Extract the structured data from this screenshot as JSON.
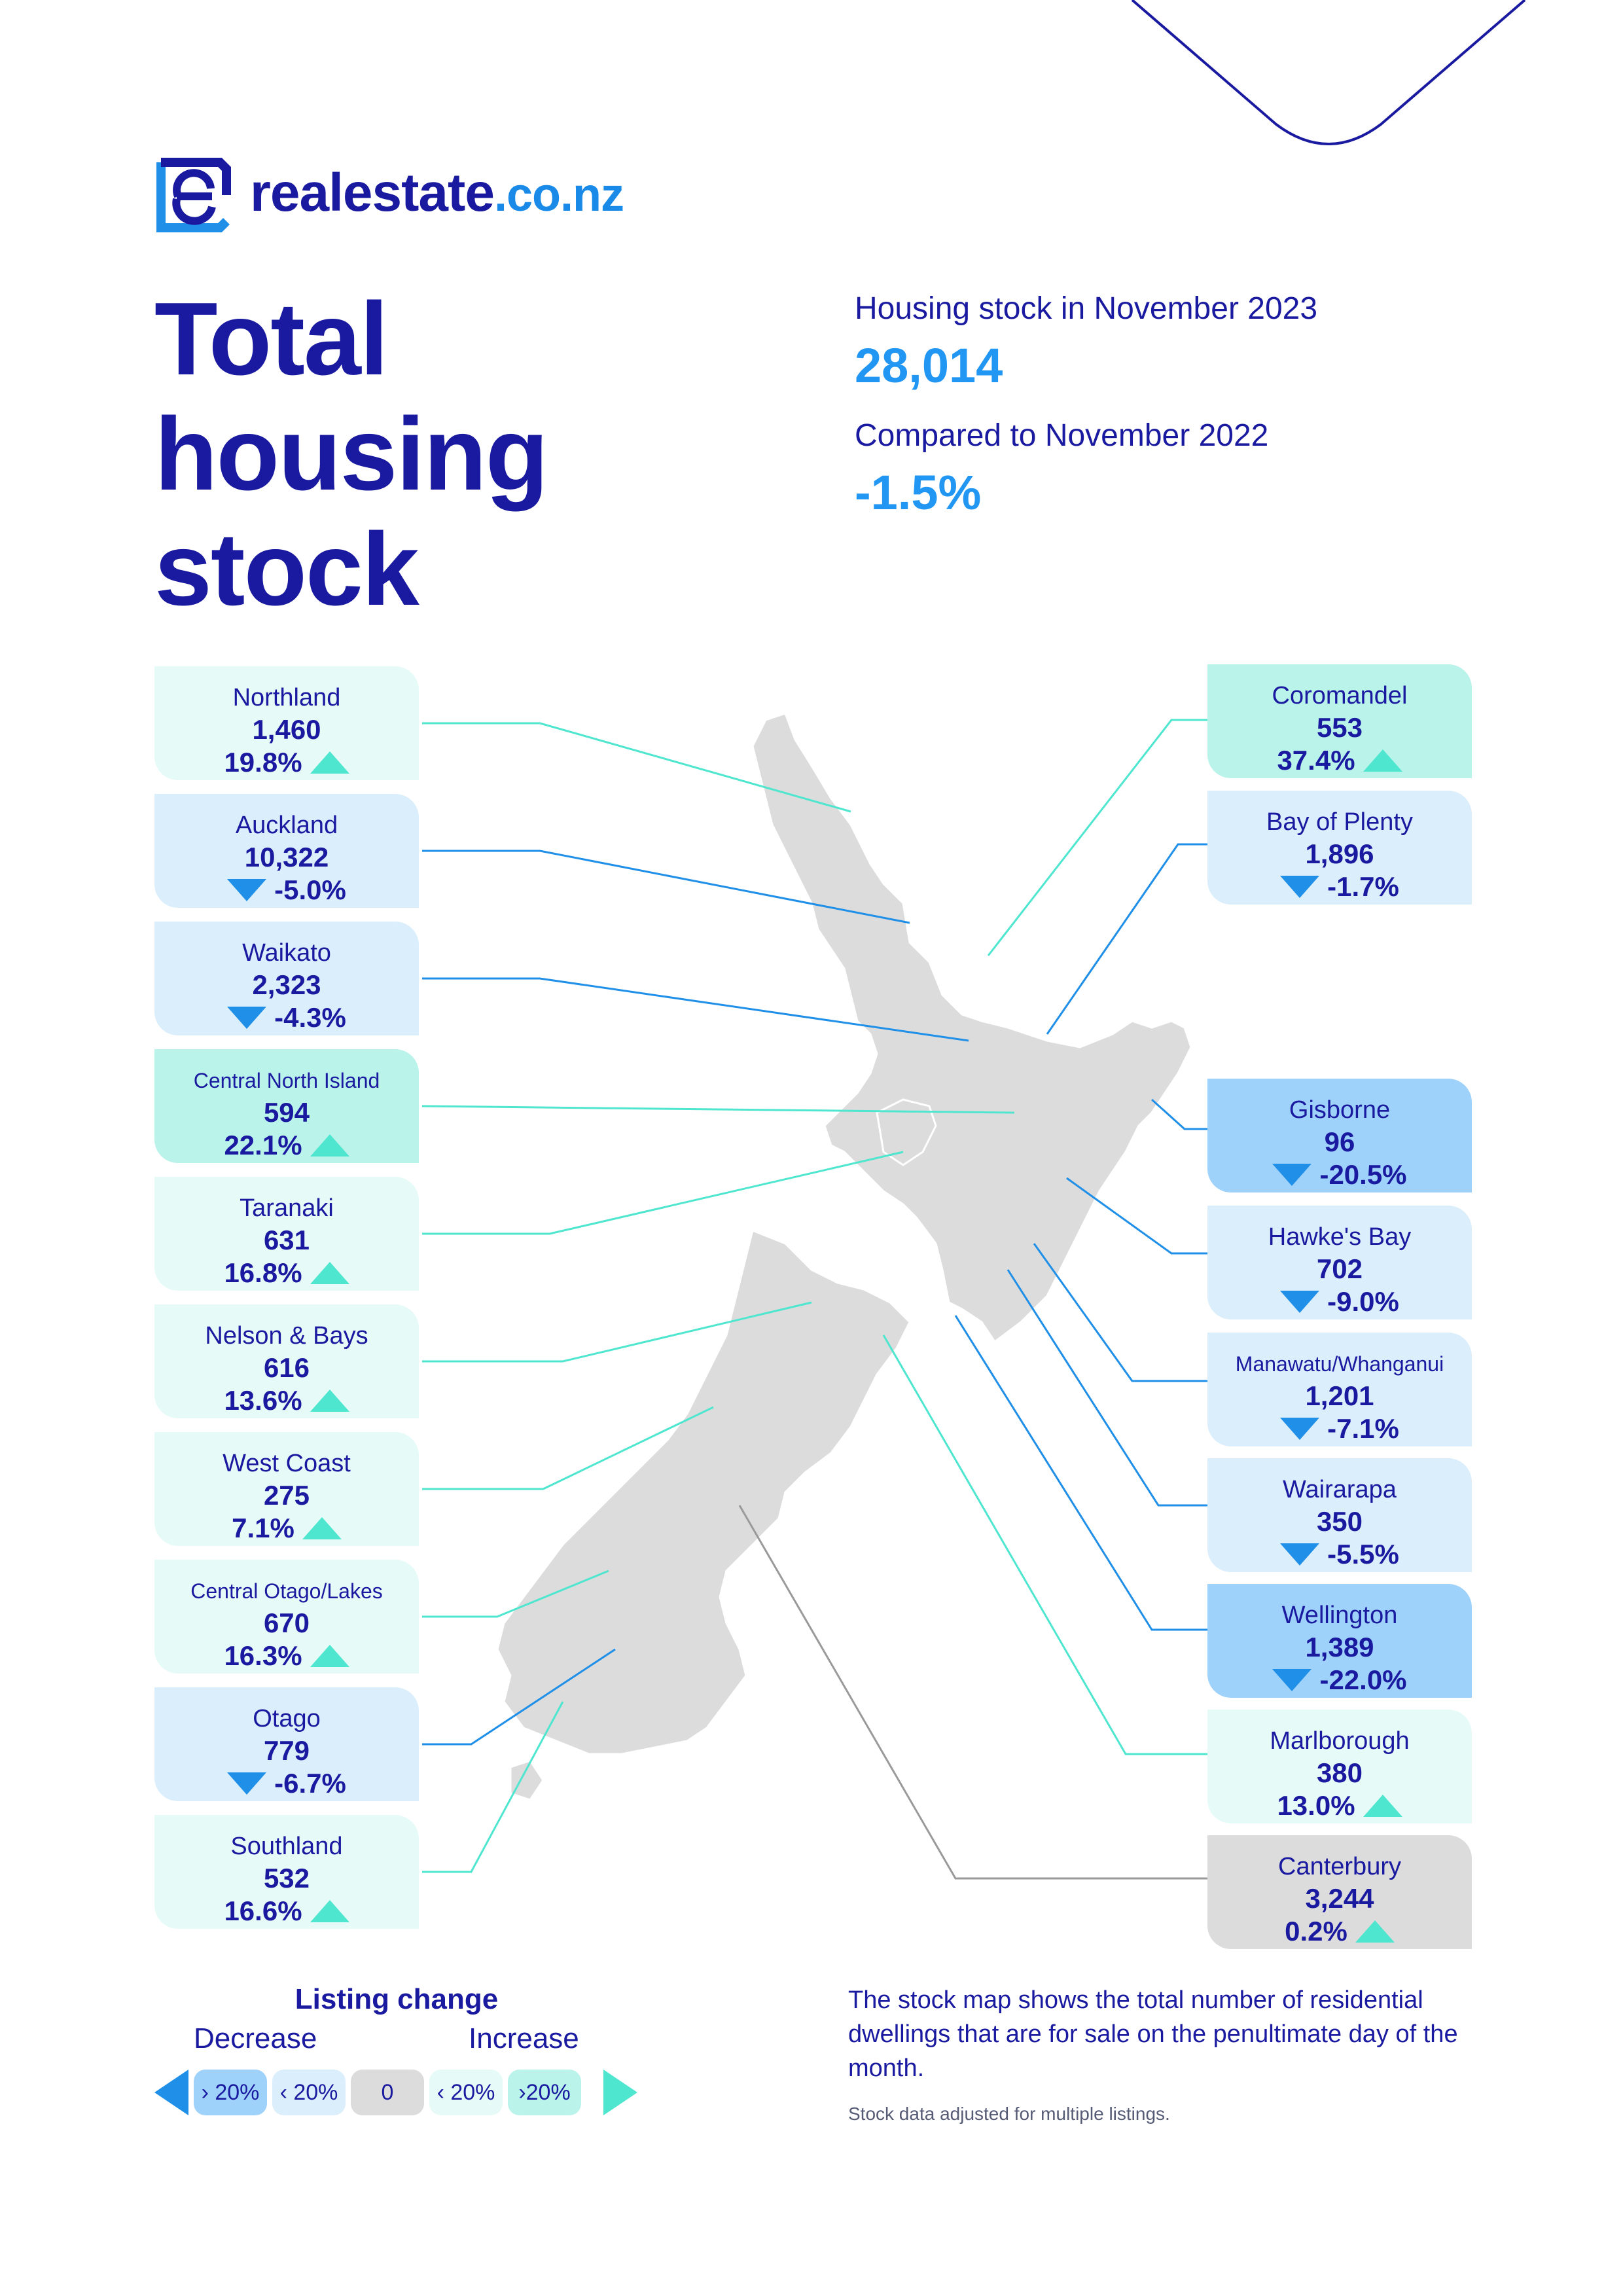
{
  "brand": {
    "name": "realestate",
    "tld": ".co.nz",
    "primary_color": "#1a1aa0",
    "accent_color": "#2196f3"
  },
  "title": {
    "line1": "Total",
    "line2": "housing",
    "line3": "stock"
  },
  "summary": {
    "stock_label": "Housing stock in November 2023",
    "stock_value": "28,014",
    "compare_label": "Compared to November 2022",
    "compare_value": "-1.5%"
  },
  "regions": [
    {
      "name": "Northland",
      "count": "1,460",
      "change": "19.8%",
      "direction": "up",
      "band": "increase"
    },
    {
      "name": "Auckland",
      "count": "10,322",
      "change": "-5.0%",
      "direction": "down",
      "band": "decrease"
    },
    {
      "name": "Waikato",
      "count": "2,323",
      "change": "-4.3%",
      "direction": "down",
      "band": "decrease"
    },
    {
      "name": "Central North Island",
      "count": "594",
      "change": "22.1%",
      "direction": "up",
      "band": "increase-over-20"
    },
    {
      "name": "Taranaki",
      "count": "631",
      "change": "16.8%",
      "direction": "up",
      "band": "increase"
    },
    {
      "name": "Nelson & Bays",
      "count": "616",
      "change": "13.6%",
      "direction": "up",
      "band": "increase"
    },
    {
      "name": "West Coast",
      "count": "275",
      "change": "7.1%",
      "direction": "up",
      "band": "increase"
    },
    {
      "name": "Central Otago/Lakes",
      "count": "670",
      "change": "16.3%",
      "direction": "up",
      "band": "increase"
    },
    {
      "name": "Otago",
      "count": "779",
      "change": "-6.7%",
      "direction": "down",
      "band": "decrease"
    },
    {
      "name": "Southland",
      "count": "532",
      "change": "16.6%",
      "direction": "up",
      "band": "increase"
    },
    {
      "name": "Coromandel",
      "count": "553",
      "change": "37.4%",
      "direction": "up",
      "band": "increase-over-20"
    },
    {
      "name": "Bay of Plenty",
      "count": "1,896",
      "change": "-1.7%",
      "direction": "down",
      "band": "decrease"
    },
    {
      "name": "Gisborne",
      "count": "96",
      "change": "-20.5%",
      "direction": "down",
      "band": "decrease-over-20"
    },
    {
      "name": "Hawke's Bay",
      "count": "702",
      "change": "-9.0%",
      "direction": "down",
      "band": "decrease"
    },
    {
      "name": "Manawatu/Whanganui",
      "count": "1,201",
      "change": "-7.1%",
      "direction": "down",
      "band": "decrease"
    },
    {
      "name": "Wairarapa",
      "count": "350",
      "change": "-5.5%",
      "direction": "down",
      "band": "decrease"
    },
    {
      "name": "Wellington",
      "count": "1,389",
      "change": "-22.0%",
      "direction": "down",
      "band": "decrease-over-20"
    },
    {
      "name": "Marlborough",
      "count": "380",
      "change": "13.0%",
      "direction": "up",
      "band": "increase"
    },
    {
      "name": "Canterbury",
      "count": "3,244",
      "change": "0.2%",
      "direction": "up",
      "band": "zero"
    }
  ],
  "legend": {
    "title": "Listing change",
    "decrease_label": "Decrease",
    "increase_label": "Increase",
    "chips": [
      "› 20%",
      "‹ 20%",
      "0",
      "‹ 20%",
      "›20%"
    ],
    "colors": {
      "decrease_big": "#9fd2fb",
      "decrease_small": "#dbeefb",
      "zero": "#dcdcdc",
      "increase_small": "#e6fbf7",
      "increase_big": "#b9f3ea"
    }
  },
  "note": {
    "text": "The stock map shows the total number of residential dwellings that are for sale on the penultimate day of the month.",
    "small": "Stock data adjusted for multiple listings."
  }
}
